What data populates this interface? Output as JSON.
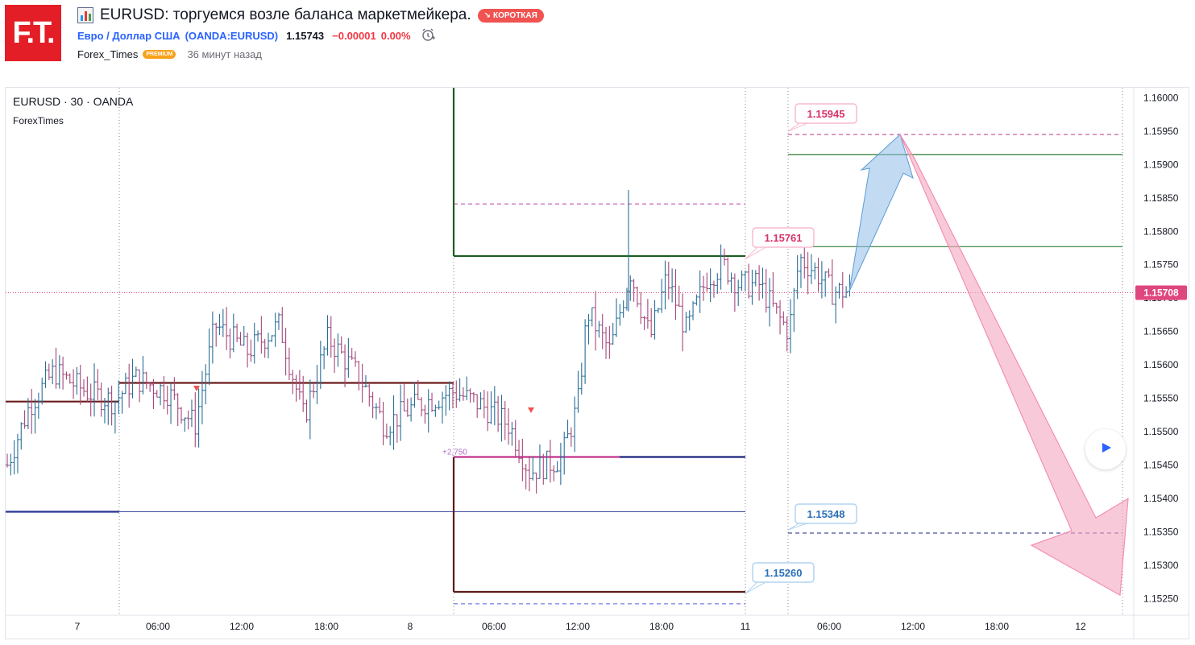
{
  "header": {
    "logo_text": "F.T.",
    "icon": "chart-bar-icon",
    "title": "EURUSD: торгуемся возле баланса маркетмейкера.",
    "badge": "КОРОТКАЯ",
    "badge_color": "#f05350",
    "symbol_name": "Евро / Доллар США",
    "symbol_code": "OANDA:EURUSD",
    "price": "1.15743",
    "change": "−0.00001",
    "change_pct": "0.00%",
    "alarm_icon": "alarm-clock-icon",
    "author": "Forex_Times",
    "author_badge": "PREMIUM",
    "published": "36 минут назад"
  },
  "chart_data": {
    "type": "bar",
    "subtype": "ohlc",
    "symbol_label": "EURUSD · 30 · OANDA",
    "watermark": "ForexTimes",
    "x_ticks": [
      "7",
      "06:00",
      "12:00",
      "18:00",
      "8",
      "06:00",
      "12:00",
      "18:00",
      "11",
      "06:00",
      "12:00",
      "18:00",
      "12"
    ],
    "y_ticks": [
      "1.16000",
      "1.15950",
      "1.15900",
      "1.15850",
      "1.15800",
      "1.15750",
      "1.15700",
      "1.15650",
      "1.15600",
      "1.15550",
      "1.15500",
      "1.15450",
      "1.15400",
      "1.15350",
      "1.15300",
      "1.15250"
    ],
    "ylim": [
      1.15225,
      1.16015
    ],
    "last_price": "1.15708",
    "last_price_value": 1.15708,
    "up_color": "#2a6f97",
    "down_color": "#a6477a",
    "labels": [
      {
        "text": "1.15945",
        "value": 1.15945,
        "color": "#d6336c"
      },
      {
        "text": "1.15761",
        "value": 1.15761,
        "color": "#d6336c"
      },
      {
        "text": "1.15348",
        "value": 1.15348,
        "color": "#2a6fb8"
      },
      {
        "text": "1.15260",
        "value": 1.1526,
        "color": "#2a6fb8"
      }
    ],
    "small_label": "+2,750",
    "levels": {
      "dark_red_level": 1.15545,
      "day7_balance": 1.15573,
      "navy_level": 1.1538,
      "green_high": 1.15763,
      "purple_dash_high": 1.15841,
      "magenta_mid": 1.15462,
      "maroon_low": 1.1526,
      "violet_dash_low": 1.15242,
      "target_high_dash": 1.15945,
      "green_line_1": 1.15915,
      "green_line_2": 1.15777,
      "target_low_dash": 1.15348
    },
    "markers": [
      "sell-triangle",
      "sell-triangle"
    ],
    "forecast": {
      "up_arrow": {
        "from": 1.1571,
        "to": 1.15945,
        "color": "#8fbde8"
      },
      "down_arrow": {
        "from": 1.15945,
        "to": 1.15255,
        "color": "#f4a6c0"
      }
    },
    "grid": false
  },
  "controls": {
    "play_icon": "play-icon"
  }
}
